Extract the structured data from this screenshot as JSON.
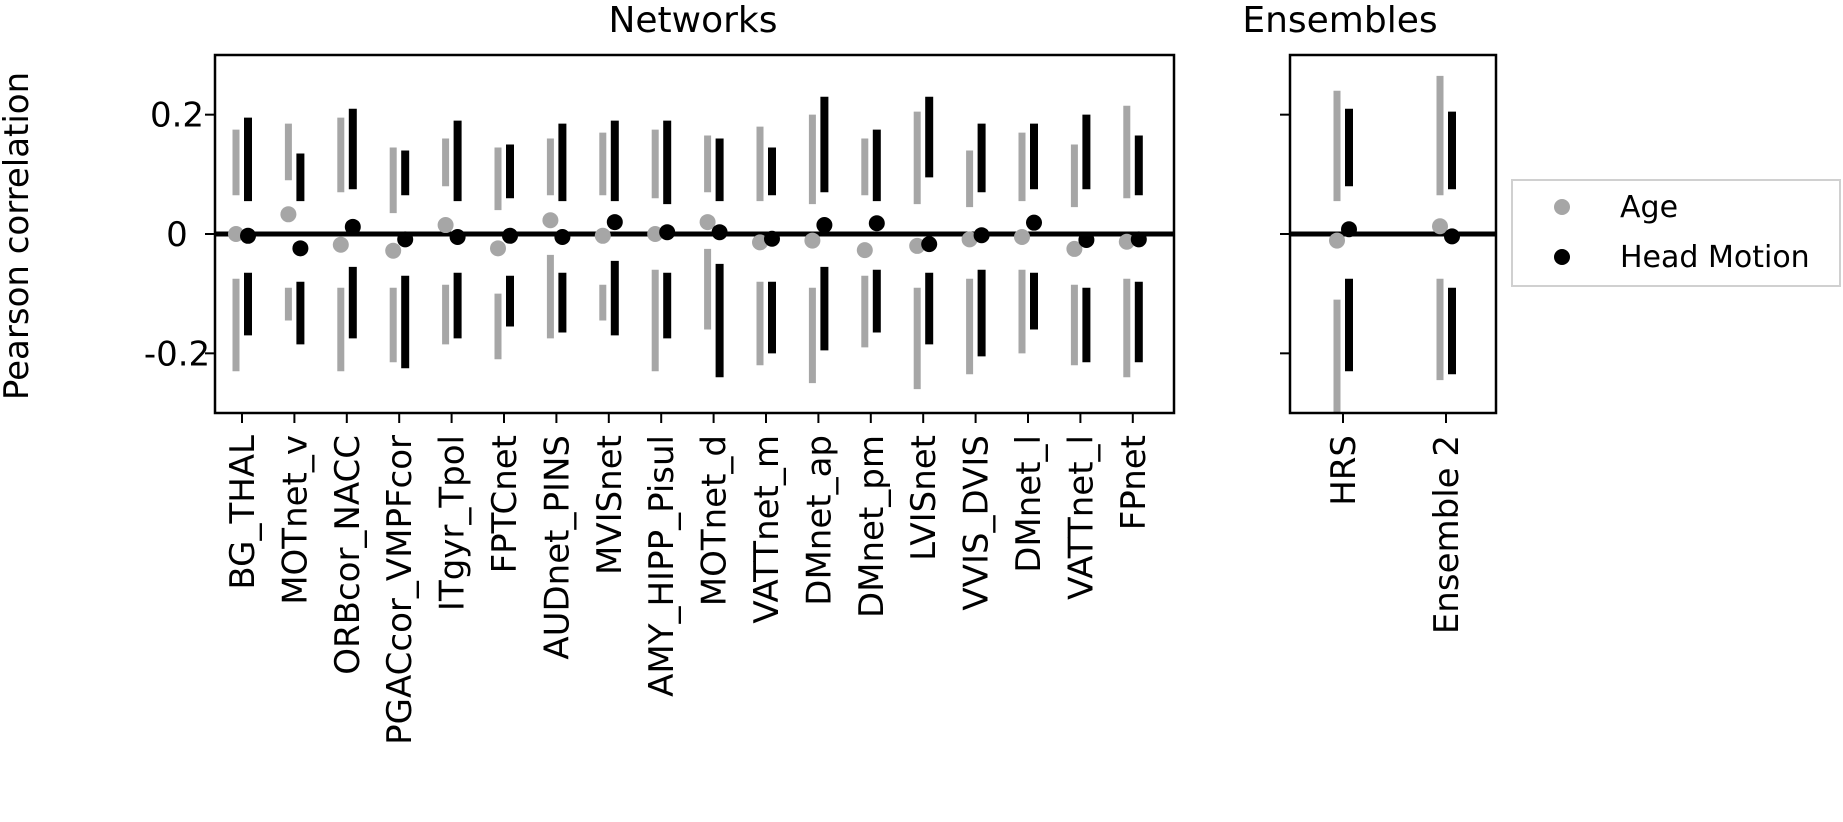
{
  "chart_data": [
    {
      "type": "scatter",
      "panel": "networks",
      "title": "Networks",
      "ylabel": "Pearson correlation",
      "ylim": [
        -0.3,
        0.3
      ],
      "yticks": [
        0.2,
        0,
        -0.2
      ],
      "ytick_labels": [
        "0.2",
        "0",
        "-0.2"
      ],
      "zero_line": true,
      "grid": false,
      "categories": [
        "BG_THAL",
        "MOTnet_v",
        "ORBcor_NACC",
        "PGACcor_VMPFcor",
        "ITgyr_Tpol",
        "FPTCnet",
        "AUDnet_PINS",
        "MVISnet",
        "AMY_HIPP_Pisul",
        "MOTnet_d",
        "VATTnet_m",
        "DMnet_ap",
        "DMnet_pm",
        "LVISnet",
        "VVIS_DVIS",
        "DMnet_l",
        "VATTnet_l",
        "FPnet"
      ],
      "series": [
        {
          "name": "Age",
          "color": "#a6a6a6",
          "values": [
            0.0,
            0.033,
            -0.018,
            -0.028,
            0.015,
            -0.024,
            0.023,
            -0.003,
            0.0,
            0.02,
            -0.014,
            -0.011,
            -0.027,
            -0.02,
            -0.009,
            -0.005,
            -0.025,
            -0.013
          ],
          "upper_band": [
            [
              0.065,
              0.175
            ],
            [
              0.09,
              0.185
            ],
            [
              0.07,
              0.195
            ],
            [
              0.035,
              0.145
            ],
            [
              0.08,
              0.16
            ],
            [
              0.04,
              0.145
            ],
            [
              0.065,
              0.16
            ],
            [
              0.065,
              0.17
            ],
            [
              0.06,
              0.175
            ],
            [
              0.07,
              0.165
            ],
            [
              0.055,
              0.18
            ],
            [
              0.05,
              0.2
            ],
            [
              0.065,
              0.16
            ],
            [
              0.05,
              0.205
            ],
            [
              0.045,
              0.14
            ],
            [
              0.055,
              0.17
            ],
            [
              0.045,
              0.15
            ],
            [
              0.06,
              0.215
            ]
          ],
          "lower_band": [
            [
              -0.075,
              -0.23
            ],
            [
              -0.09,
              -0.145
            ],
            [
              -0.09,
              -0.23
            ],
            [
              -0.09,
              -0.215
            ],
            [
              -0.085,
              -0.185
            ],
            [
              -0.1,
              -0.21
            ],
            [
              -0.035,
              -0.175
            ],
            [
              -0.085,
              -0.145
            ],
            [
              -0.06,
              -0.23
            ],
            [
              -0.025,
              -0.16
            ],
            [
              -0.08,
              -0.22
            ],
            [
              -0.09,
              -0.25
            ],
            [
              -0.07,
              -0.19
            ],
            [
              -0.09,
              -0.26
            ],
            [
              -0.075,
              -0.235
            ],
            [
              -0.06,
              -0.2
            ],
            [
              -0.085,
              -0.22
            ],
            [
              -0.075,
              -0.24
            ]
          ]
        },
        {
          "name": "Head Motion",
          "color": "#000000",
          "values": [
            -0.003,
            -0.024,
            0.012,
            -0.009,
            -0.005,
            -0.003,
            -0.005,
            0.02,
            0.003,
            0.003,
            -0.008,
            0.015,
            0.018,
            -0.017,
            -0.002,
            0.019,
            -0.01,
            -0.009
          ],
          "upper_band": [
            [
              0.055,
              0.195
            ],
            [
              0.055,
              0.135
            ],
            [
              0.075,
              0.21
            ],
            [
              0.065,
              0.14
            ],
            [
              0.055,
              0.19
            ],
            [
              0.06,
              0.15
            ],
            [
              0.055,
              0.185
            ],
            [
              0.055,
              0.19
            ],
            [
              0.05,
              0.19
            ],
            [
              0.055,
              0.16
            ],
            [
              0.065,
              0.145
            ],
            [
              0.07,
              0.23
            ],
            [
              0.055,
              0.175
            ],
            [
              0.095,
              0.23
            ],
            [
              0.07,
              0.185
            ],
            [
              0.075,
              0.185
            ],
            [
              0.075,
              0.2
            ],
            [
              0.065,
              0.165
            ]
          ],
          "lower_band": [
            [
              -0.065,
              -0.17
            ],
            [
              -0.08,
              -0.185
            ],
            [
              -0.055,
              -0.175
            ],
            [
              -0.07,
              -0.225
            ],
            [
              -0.065,
              -0.175
            ],
            [
              -0.07,
              -0.155
            ],
            [
              -0.065,
              -0.165
            ],
            [
              -0.045,
              -0.17
            ],
            [
              -0.065,
              -0.175
            ],
            [
              -0.05,
              -0.24
            ],
            [
              -0.08,
              -0.2
            ],
            [
              -0.055,
              -0.195
            ],
            [
              -0.06,
              -0.165
            ],
            [
              -0.065,
              -0.185
            ],
            [
              -0.06,
              -0.205
            ],
            [
              -0.065,
              -0.16
            ],
            [
              -0.09,
              -0.215
            ],
            [
              -0.08,
              -0.215
            ]
          ]
        }
      ]
    },
    {
      "type": "scatter",
      "panel": "ensembles",
      "title": "Ensembles",
      "ylim": [
        -0.3,
        0.3
      ],
      "yticks": [
        0.2,
        0,
        -0.2
      ],
      "zero_line": true,
      "grid": false,
      "categories": [
        "HRS",
        "Ensemble 2"
      ],
      "series": [
        {
          "name": "Age",
          "color": "#a6a6a6",
          "values": [
            -0.011,
            0.013
          ],
          "upper_band": [
            [
              0.055,
              0.24
            ],
            [
              0.065,
              0.265
            ]
          ],
          "lower_band": [
            [
              -0.11,
              -0.3
            ],
            [
              -0.075,
              -0.245
            ]
          ]
        },
        {
          "name": "Head Motion",
          "color": "#000000",
          "values": [
            0.008,
            -0.004
          ],
          "upper_band": [
            [
              0.08,
              0.21
            ],
            [
              0.075,
              0.205
            ]
          ],
          "lower_band": [
            [
              -0.075,
              -0.23
            ],
            [
              -0.09,
              -0.235
            ]
          ]
        }
      ]
    }
  ],
  "legend": {
    "placement": "right",
    "items": [
      {
        "label": "Age",
        "color": "#a6a6a6"
      },
      {
        "label": "Head Motion",
        "color": "#000000"
      }
    ]
  }
}
